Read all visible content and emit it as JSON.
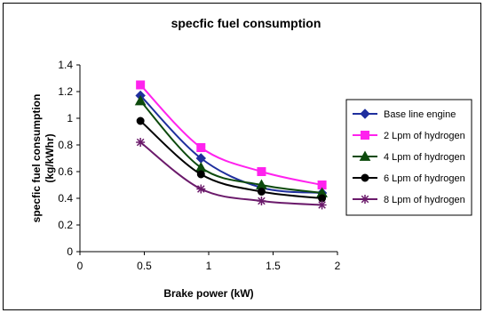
{
  "chart_data": {
    "type": "line",
    "title": "specfic fuel consumption",
    "xlabel": "Brake power (kW)",
    "ylabel_line1": "specfic fuel consumption",
    "ylabel_line2": "(kg/kWhr)",
    "xlim": [
      0,
      2
    ],
    "ylim": [
      0,
      1.4
    ],
    "xticks": [
      0,
      0.5,
      1,
      1.5,
      2
    ],
    "xtick_labels": [
      "0",
      "0.5",
      "1",
      "1.5",
      "2"
    ],
    "yticks": [
      0,
      0.2,
      0.4,
      0.6,
      0.8,
      1,
      1.2,
      1.4
    ],
    "ytick_labels": [
      "0",
      "0.2",
      "0.4",
      "0.6",
      "0.8",
      "1",
      "1.2",
      "1.4"
    ],
    "grid": false,
    "legend_position": "right",
    "x": [
      0.47,
      0.94,
      1.41,
      1.88
    ],
    "series": [
      {
        "name": "Base line engine",
        "color": "#1f2f9e",
        "marker": "diamond",
        "values": [
          1.17,
          0.7,
          0.48,
          0.44
        ]
      },
      {
        "name": "2 Lpm of hydrogen",
        "color": "#ff22ee",
        "marker": "square",
        "values": [
          1.25,
          0.78,
          0.6,
          0.5
        ]
      },
      {
        "name": "4 Lpm of hydrogen",
        "color": "#0d4a0d",
        "marker": "triangle",
        "values": [
          1.13,
          0.63,
          0.5,
          0.44
        ]
      },
      {
        "name": "6 Lpm of hydrogen",
        "color": "#000000",
        "marker": "circle",
        "values": [
          0.98,
          0.58,
          0.45,
          0.4
        ]
      },
      {
        "name": "8 Lpm of hydrogen",
        "color": "#6b1a6b",
        "marker": "star",
        "values": [
          0.82,
          0.47,
          0.38,
          0.35
        ]
      }
    ]
  }
}
